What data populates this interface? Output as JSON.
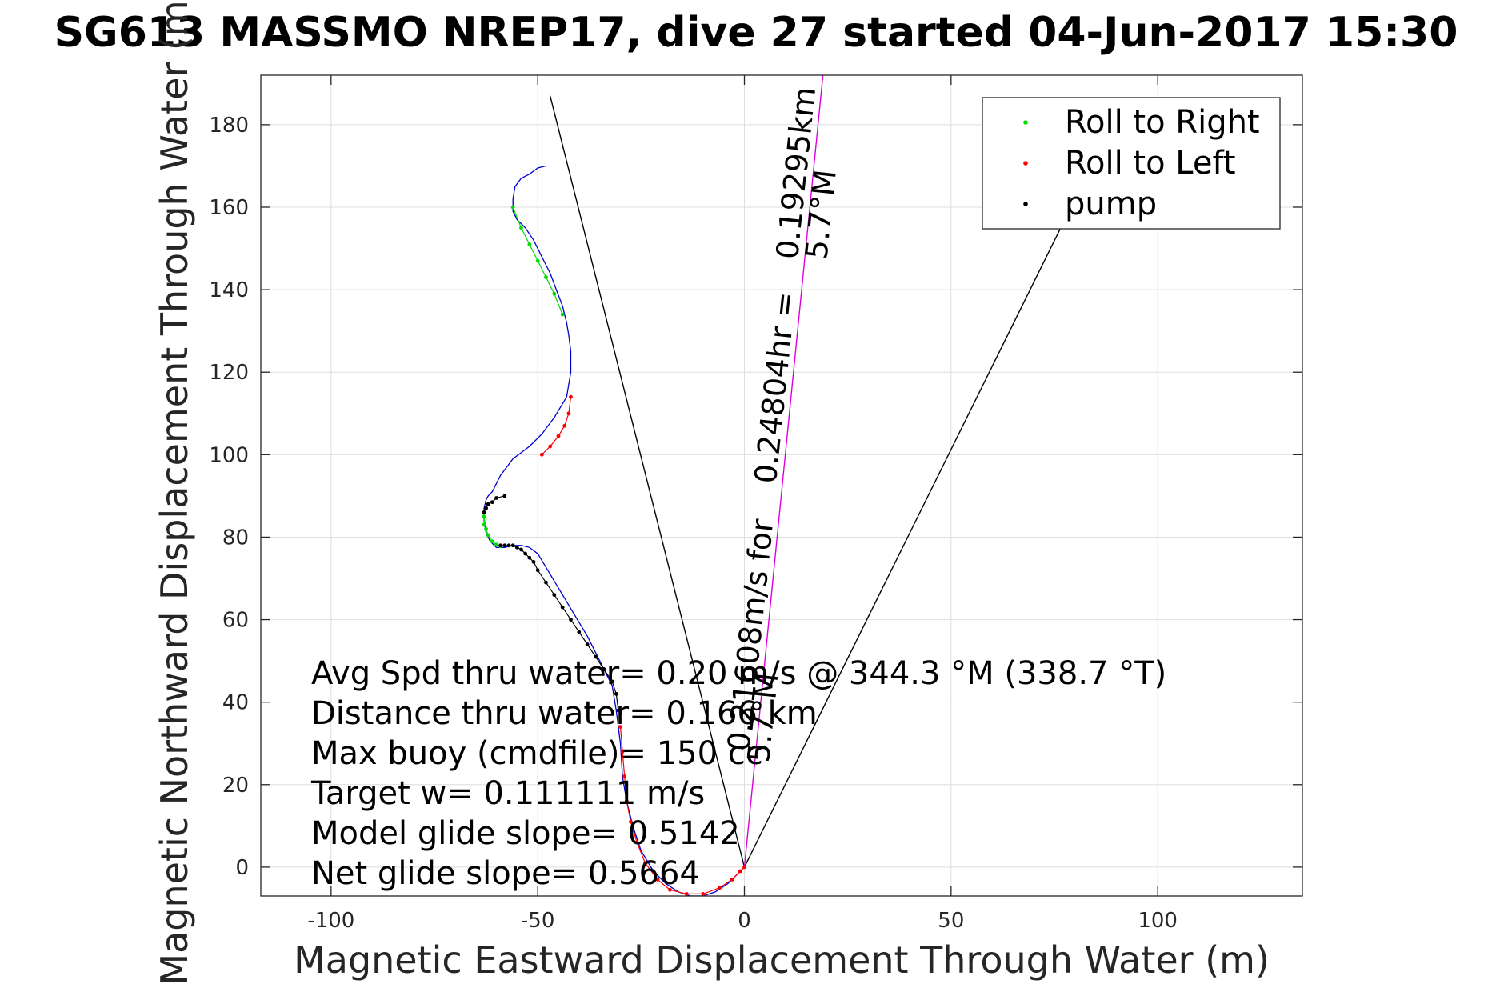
{
  "figure": {
    "title": "SG613 MASSMO NREP17, dive 27 started 04-Jun-2017 15:30"
  },
  "chart_data": {
    "type": "line",
    "title": "SG613 MASSMO NREP17, dive 27 started 04-Jun-2017 15:30",
    "xlabel": "Magnetic Eastward Displacement Through Water (m)",
    "ylabel": "Magnetic Northward Displacement Through Water (m)",
    "xlim": [
      -117,
      135
    ],
    "ylim": [
      -7,
      192
    ],
    "xticks": [
      -100,
      -50,
      0,
      50,
      100
    ],
    "yticks": [
      0,
      20,
      40,
      60,
      80,
      100,
      120,
      140,
      160,
      180
    ],
    "grid": true,
    "legend_position": "top-right",
    "legend": [
      {
        "label": "Roll to Right",
        "color": "#00dd00"
      },
      {
        "label": "Roll to Left",
        "color": "#ff0000"
      },
      {
        "label": "pump",
        "color": "#000000"
      }
    ],
    "track": {
      "color": "#0000cc",
      "x": [
        0,
        -2,
        -4,
        -7,
        -10,
        -13,
        -16,
        -19,
        -22,
        -25,
        -27,
        -28.5,
        -29.5,
        -30,
        -31,
        -32,
        -35,
        -38,
        -41,
        -44,
        -47,
        -50,
        -52,
        -54,
        -56,
        -58,
        -60,
        -61.5,
        -62.5,
        -63,
        -63,
        -62.5,
        -62,
        -61,
        -59,
        -56,
        -52,
        -49,
        -46,
        -43,
        -42,
        -42,
        -42.5,
        -43,
        -44,
        -45.5,
        -47,
        -49,
        -51,
        -53,
        -55,
        -56,
        -56,
        -55.5,
        -54,
        -52,
        -50,
        -48
      ],
      "y": [
        0,
        -2,
        -4,
        -6,
        -7,
        -7,
        -6,
        -4,
        -1,
        4,
        10,
        16,
        22,
        30,
        38,
        44,
        50,
        56,
        61,
        66,
        71,
        76,
        77.5,
        78,
        78,
        77.5,
        77.5,
        79,
        81,
        84,
        87,
        89,
        90,
        91,
        95,
        99,
        102,
        105,
        109,
        114,
        120,
        125,
        129,
        132,
        136,
        140,
        144,
        148,
        152,
        155,
        157,
        159,
        162,
        165,
        167,
        168,
        169.5,
        170
      ]
    },
    "roll_right_segments": [
      {
        "x": [
          -56,
          -54,
          -52,
          -50,
          -48,
          -46,
          -44
        ],
        "y": [
          160,
          155,
          151,
          147,
          143,
          139,
          134
        ]
      },
      {
        "x": [
          -63,
          -63,
          -62.5,
          -62,
          -61,
          -60,
          -59
        ],
        "y": [
          83,
          85,
          82,
          80.5,
          79,
          78.2,
          77.8
        ]
      }
    ],
    "roll_left_segments": [
      {
        "x": [
          -49,
          -47,
          -45,
          -43.5,
          -42.5,
          -42
        ],
        "y": [
          100,
          102,
          104.5,
          107,
          110,
          114
        ]
      },
      {
        "x": [
          -30,
          -29.5,
          -29,
          -28.5,
          -27.5,
          -26,
          -24,
          -21,
          -18,
          -14,
          -10,
          -6,
          -3,
          -1,
          0
        ],
        "y": [
          34,
          28,
          22,
          16,
          11,
          6,
          1,
          -3,
          -5.5,
          -6.5,
          -6.5,
          -5,
          -3,
          -1,
          0
        ]
      }
    ],
    "pump_segments": [
      {
        "x": [
          -63,
          -62.5,
          -62,
          -61,
          -60,
          -58
        ],
        "y": [
          86,
          87,
          88,
          88.5,
          89.5,
          90
        ]
      },
      {
        "x": [
          -59,
          -58,
          -57,
          -56,
          -55,
          -54,
          -53,
          -52,
          -51,
          -50,
          -48,
          -46,
          -44,
          -42,
          -40,
          -38,
          -36,
          -34,
          -32,
          -31,
          -30.5
        ],
        "y": [
          78,
          78,
          78,
          78,
          77.5,
          77,
          76,
          75,
          74,
          72,
          69,
          66,
          63,
          60,
          57,
          54,
          51,
          48,
          45,
          42,
          38
        ]
      }
    ],
    "reference_lines": [
      {
        "name": "left bound",
        "x": [
          0,
          -47
        ],
        "y": [
          0,
          187
        ],
        "color": "#000000"
      },
      {
        "name": "right bound",
        "x": [
          0,
          79
        ],
        "y": [
          0,
          160
        ],
        "color": "#000000"
      },
      {
        "name": "avg direction",
        "x": [
          0,
          19
        ],
        "y": [
          0,
          192
        ],
        "color": "#dd00dd"
      }
    ],
    "rotated_annotations": [
      {
        "text": "0.19295km",
        "x": 15,
        "y": 168,
        "angle": -84
      },
      {
        "text": "0.24804hr =",
        "x": 10,
        "y": 116,
        "angle": -84
      },
      {
        "text": "0.21608m/s for",
        "x": 4,
        "y": 56,
        "angle": -84
      },
      {
        "text": "5.7°M",
        "x": 21,
        "y": 158,
        "angle": -84
      },
      {
        "text": "5.7°M",
        "x": 7,
        "y": 36,
        "angle": -84
      }
    ],
    "stats_lines": [
      "Avg Spd thru water=  0.20 m/s @ 344.3 °M (338.7 °T)",
      "Distance thru water=  0.166 km",
      "Max buoy (cmdfile)= 150 cc",
      "Target w= 0.111111 m/s",
      "Model glide slope= 0.5142",
      "Net glide slope= 0.5664"
    ]
  }
}
